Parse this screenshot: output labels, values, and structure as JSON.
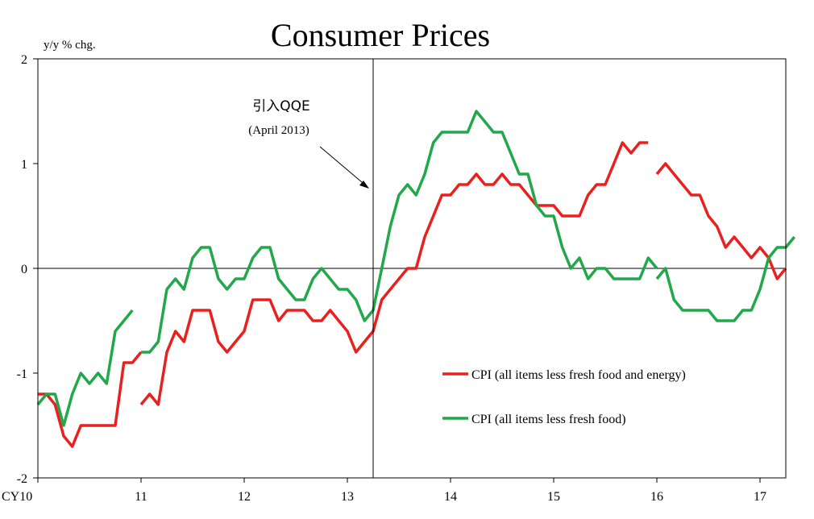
{
  "chart_data": {
    "type": "line",
    "title": "Consumer Prices",
    "ylabel": "y/y  % chg.",
    "xlabel": "",
    "ylim": [
      -2,
      2
    ],
    "yticks": [
      2,
      1,
      0,
      -1,
      -2
    ],
    "xlim": [
      2010.0,
      2017.25
    ],
    "xticks": [
      {
        "label": "CY10",
        "x": 2010
      },
      {
        "label": "11",
        "x": 2011
      },
      {
        "label": "12",
        "x": 2012
      },
      {
        "label": "13",
        "x": 2013
      },
      {
        "label": "14",
        "x": 2014
      },
      {
        "label": "15",
        "x": 2015
      },
      {
        "label": "16",
        "x": 2016
      },
      {
        "label": "17",
        "x": 2017
      }
    ],
    "grid": false,
    "legend_position": "bottom-right",
    "annotation": {
      "line1": "引入QQE",
      "line2": "(April 2013)",
      "x": 2013.25
    },
    "series": [
      {
        "name": "CPI (all items less fresh food and energy)",
        "color": "#e8211f",
        "segments": [
          {
            "x_start": 2010.0,
            "step": 0.0833333,
            "values": [
              -1.2,
              -1.2,
              -1.3,
              -1.6,
              -1.7,
              -1.5,
              -1.5,
              -1.5,
              -1.5,
              -1.5,
              -0.9,
              -0.9,
              -0.8
            ]
          },
          {
            "x_start": 2011.0,
            "step": 0.0833333,
            "values": [
              -1.3,
              -1.2,
              -1.3,
              -0.8,
              -0.6,
              -0.7,
              -0.4,
              -0.4,
              -0.4,
              -0.7,
              -0.8,
              -0.7,
              -0.6,
              -0.3,
              -0.3,
              -0.3,
              -0.5,
              -0.4,
              -0.4,
              -0.4,
              -0.5,
              -0.5,
              -0.4,
              -0.5,
              -0.6,
              -0.8,
              -0.7,
              -0.6,
              -0.3,
              -0.2,
              -0.1,
              0.0,
              0.0,
              0.3,
              0.5,
              0.7,
              0.7,
              0.8,
              0.8,
              0.9,
              0.8,
              0.8,
              0.9,
              0.8,
              0.8,
              0.7,
              0.6,
              0.6,
              0.6,
              0.5,
              0.5,
              0.5,
              0.7,
              0.8,
              0.8,
              1.0,
              1.2,
              1.1,
              1.2,
              1.2
            ]
          },
          {
            "x_start": 2016.0,
            "step": 0.0833333,
            "values": [
              0.9,
              1.0,
              0.9,
              0.8,
              0.7,
              0.7,
              0.5,
              0.4,
              0.2,
              0.3,
              0.2,
              0.1,
              0.2,
              0.1,
              -0.1,
              0.0
            ]
          }
        ]
      },
      {
        "name": "CPI (all items less fresh food)",
        "color": "#21a84a",
        "segments": [
          {
            "x_start": 2010.0,
            "step": 0.0833333,
            "values": [
              -1.3,
              -1.2,
              -1.2,
              -1.5,
              -1.2,
              -1.0,
              -1.1,
              -1.0,
              -1.1,
              -0.6,
              -0.5,
              -0.4
            ]
          },
          {
            "x_start": 2011.0,
            "step": 0.0833333,
            "values": [
              -0.8,
              -0.8,
              -0.7,
              -0.2,
              -0.1,
              -0.2,
              0.1,
              0.2,
              0.2,
              -0.1,
              -0.2,
              -0.1,
              -0.1,
              0.1,
              0.2,
              0.2,
              -0.1,
              -0.2,
              -0.3,
              -0.3,
              -0.1,
              0.0,
              -0.1,
              -0.2,
              -0.2,
              -0.3,
              -0.5,
              -0.4,
              0.0,
              0.4,
              0.7,
              0.8,
              0.7,
              0.9,
              1.2,
              1.3,
              1.3,
              1.3,
              1.3,
              1.5,
              1.4,
              1.3,
              1.3,
              1.1,
              0.9,
              0.9,
              0.6,
              0.5,
              0.5,
              0.2,
              0.0,
              0.1,
              -0.1,
              0.0,
              0.0,
              -0.1,
              -0.1,
              -0.1,
              -0.1,
              0.1,
              0.0
            ]
          },
          {
            "x_start": 2016.0,
            "step": 0.0833333,
            "values": [
              -0.1,
              0.0,
              -0.3,
              -0.4,
              -0.4,
              -0.4,
              -0.4,
              -0.5,
              -0.5,
              -0.5,
              -0.4,
              -0.4,
              -0.2,
              0.1,
              0.2,
              0.2,
              0.3
            ]
          }
        ]
      }
    ]
  }
}
